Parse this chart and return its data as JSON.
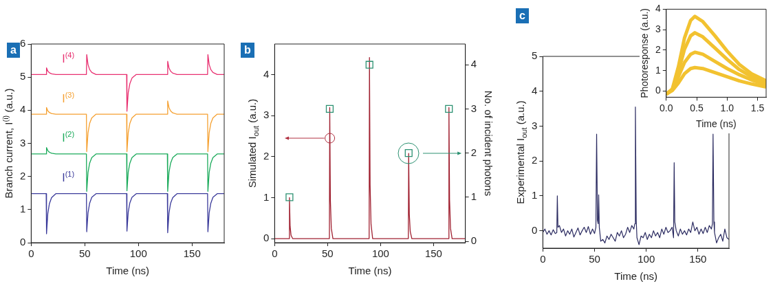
{
  "chart_data": [
    {
      "type": "line",
      "title": "a",
      "xlabel": "Time (ns)",
      "ylabel": "Branch current, I$^{(i)}$ (a.u.)",
      "x": [
        0,
        14,
        14.3,
        15.5,
        17,
        19,
        23,
        51.5,
        51.8,
        53,
        54.5,
        56.5,
        60.5,
        89,
        89.3,
        90.5,
        92,
        94,
        98,
        127,
        127.3,
        128.5,
        130,
        132,
        136,
        164.5,
        164.8,
        166,
        167.5,
        169.5,
        173.5,
        180
      ],
      "xlim": [
        0,
        180
      ],
      "xticks": [
        0,
        50,
        100,
        150
      ],
      "ylim": [
        0,
        6
      ],
      "yticks": [
        0,
        1,
        2,
        3,
        4,
        5,
        6
      ],
      "series": [
        {
          "name": "I$^{(1)}$",
          "color": "#3a3a9a",
          "values": [
            1.48,
            1.48,
            0.27,
            0.88,
            1.18,
            1.36,
            1.48,
            1.48,
            0.33,
            0.9,
            1.19,
            1.37,
            1.48,
            1.48,
            0.35,
            0.92,
            1.2,
            1.37,
            1.48,
            1.48,
            0.3,
            0.89,
            1.19,
            1.36,
            1.48,
            1.48,
            0.33,
            0.9,
            1.19,
            1.37,
            1.48,
            1.48
          ]
        },
        {
          "name": "I$^{(2)}$",
          "color": "#1aaa5a",
          "values": [
            2.68,
            2.68,
            2.87,
            2.78,
            2.73,
            2.7,
            2.68,
            2.68,
            1.55,
            2.12,
            2.4,
            2.57,
            2.68,
            2.68,
            1.57,
            2.13,
            2.4,
            2.57,
            2.68,
            2.68,
            1.55,
            2.12,
            2.4,
            2.57,
            2.68,
            2.68,
            1.55,
            2.12,
            2.4,
            2.57,
            2.68,
            2.68
          ]
        },
        {
          "name": "I$^{(3)}$",
          "color": "#f5a030",
          "values": [
            3.88,
            3.88,
            4.08,
            3.98,
            3.93,
            3.9,
            3.88,
            3.88,
            2.75,
            3.32,
            3.6,
            3.77,
            3.88,
            3.88,
            2.75,
            3.32,
            3.6,
            3.77,
            3.88,
            3.88,
            4.28,
            4.08,
            3.98,
            3.92,
            3.88,
            3.88,
            2.75,
            3.32,
            3.6,
            3.77,
            3.88,
            3.88
          ]
        },
        {
          "name": "I$^{(4)}$",
          "color": "#e83070",
          "values": [
            5.08,
            5.08,
            5.28,
            5.18,
            5.13,
            5.1,
            5.08,
            5.08,
            5.68,
            5.38,
            5.23,
            5.14,
            5.08,
            5.08,
            3.97,
            4.53,
            4.8,
            4.97,
            5.08,
            5.08,
            5.48,
            5.28,
            5.18,
            5.12,
            5.08,
            5.08,
            5.68,
            5.38,
            5.23,
            5.14,
            5.08,
            5.08
          ]
        }
      ]
    },
    {
      "type": "line",
      "title": "b",
      "xlabel": "Time (ns)",
      "ylabel": "Simulated I$_{out}$ (a.u.)",
      "y2label": "No. of incident photons",
      "xlim": [
        0,
        180
      ],
      "xticks": [
        0,
        50,
        100,
        150
      ],
      "ylim": [
        -0.1,
        4.75
      ],
      "yticks": [
        0,
        1,
        2,
        3,
        4
      ],
      "y2lim": [
        -0.03,
        4.47
      ],
      "y2ticks": [
        0,
        1,
        2,
        3,
        4
      ],
      "series": [
        {
          "color": "#a02030",
          "x": [
            0,
            13.7,
            14,
            14.6,
            15.5,
            17,
            51.7,
            52,
            52.6,
            53.5,
            55,
            89.2,
            89.5,
            90.1,
            91,
            92.5,
            126.2,
            126.5,
            127.1,
            128,
            129.5,
            164.2,
            164.5,
            165.1,
            166,
            167.5,
            180
          ],
          "values": [
            0,
            0,
            1,
            0.3,
            0.08,
            0,
            0,
            3.2,
            0.95,
            0.25,
            0,
            0,
            4.42,
            1.3,
            0.35,
            0,
            0,
            2.08,
            0.6,
            0.17,
            0,
            0,
            3.2,
            0.95,
            0.25,
            0,
            0
          ]
        },
        {
          "type": "scatter",
          "axis": "y2",
          "marker": "square",
          "color": "#2a9070",
          "x": [
            14,
            52,
            89.5,
            126.5,
            164.5
          ],
          "values": [
            1,
            3,
            4,
            2,
            3
          ]
        }
      ]
    },
    {
      "type": "line",
      "title": "c",
      "xlabel": "Time (ns)",
      "ylabel": "Experimental I$_{out}$ (a.u.)",
      "xlim": [
        0,
        180
      ],
      "xticks": [
        0,
        50,
        100,
        150
      ],
      "ylim": [
        -0.5,
        5
      ],
      "yticks": [
        0,
        1,
        2,
        3,
        4,
        5
      ],
      "series": [
        {
          "color": "#2a2a60",
          "x": [
            0,
            2,
            4,
            6,
            8,
            10,
            12,
            13.5,
            14,
            14.6,
            16,
            18,
            20,
            22,
            24,
            26,
            28,
            30,
            32,
            34,
            36,
            38,
            40,
            42,
            44,
            46,
            48,
            50,
            51.3,
            52,
            52.8,
            53.5,
            54,
            54.6,
            56,
            58,
            60,
            62,
            64,
            66,
            68,
            70,
            72,
            74,
            76,
            78,
            80,
            82,
            84,
            86,
            88,
            88.9,
            89.5,
            90.3,
            91,
            93,
            95,
            97,
            99,
            101,
            103,
            105,
            107,
            109,
            111,
            113,
            115,
            117,
            119,
            121,
            123,
            125,
            126.4,
            127,
            127.6,
            129,
            131,
            133,
            135,
            137,
            139,
            141,
            143,
            145,
            147,
            149,
            151,
            153,
            155,
            157,
            159,
            161,
            163,
            164,
            164.6,
            165.4,
            166,
            168,
            170,
            172,
            174,
            176,
            178,
            180
          ],
          "values": [
            -0.05,
            0.05,
            -0.1,
            0,
            -0.12,
            0.03,
            -0.08,
            -0.05,
            1,
            0.1,
            0.15,
            -0.05,
            0.05,
            -0.15,
            0,
            -0.1,
            0.05,
            -0.18,
            -0.05,
            0.08,
            -0.12,
            0,
            0.1,
            -0.05,
            0.12,
            -0.1,
            0.05,
            -0.08,
            0.1,
            2.77,
            0.3,
            0.2,
            1.03,
            0.1,
            -0.3,
            -0.25,
            -0.35,
            -0.15,
            -0.25,
            -0.1,
            -0.2,
            -0.3,
            -0.05,
            -0.15,
            0,
            -0.2,
            -0.1,
            0.1,
            -0.05,
            0.15,
            0.05,
            0.2,
            3.55,
            0.3,
            -0.2,
            -0.4,
            -0.15,
            -0.2,
            -0.05,
            -0.25,
            -0.1,
            -0.2,
            0,
            -0.15,
            -0.05,
            -0.2,
            0.05,
            -0.1,
            0.1,
            -0.05,
            0,
            0.1,
            -0.2,
            1.95,
            0.25,
            0,
            -0.15,
            0.05,
            -0.1,
            0,
            -0.12,
            0.05,
            -0.05,
            0.25,
            0,
            0.1,
            -0.1,
            0.05,
            -0.08,
            0.1,
            -0.05,
            0.15,
            0.05,
            0.2,
            2.77,
            0.25,
            -0.05,
            -0.35,
            -0.2,
            -0.1,
            -0.3,
            0.05,
            -0.2,
            -0.25
          ]
        }
      ]
    },
    {
      "type": "line",
      "xlabel": "Time (ns)",
      "ylabel": "Photoresponse (a.u.)",
      "x": [
        0,
        0.1,
        0.2,
        0.3,
        0.4,
        0.47,
        0.6,
        0.8,
        1,
        1.2,
        1.4,
        1.64
      ],
      "xlim": [
        0,
        1.64
      ],
      "xticks": [
        {
          "value": 0,
          "label": "0.0"
        },
        {
          "value": 0.5,
          "label": "0.5"
        },
        {
          "value": 1,
          "label": "1.0"
        },
        {
          "value": 1.5,
          "label": "1.5"
        }
      ],
      "ylim": [
        -0.3,
        4
      ],
      "yticks": [
        0,
        1,
        2,
        3,
        4
      ],
      "series": [
        {
          "color": "#f2c230",
          "values": [
            -0.15,
            0.1,
            1.2,
            2.6,
            3.45,
            3.65,
            3.4,
            2.7,
            1.95,
            1.3,
            0.85,
            0.5
          ]
        },
        {
          "color": "#f2c230",
          "values": [
            -0.15,
            0.08,
            0.95,
            2.05,
            2.7,
            2.85,
            2.65,
            2.1,
            1.55,
            1.05,
            0.7,
            0.4
          ]
        },
        {
          "color": "#f2c230",
          "values": [
            -0.15,
            0.05,
            0.7,
            1.4,
            1.8,
            1.9,
            1.8,
            1.45,
            1.1,
            0.8,
            0.55,
            0.3
          ]
        },
        {
          "color": "#f2c230",
          "values": [
            -0.15,
            0.03,
            0.4,
            0.85,
            1.1,
            1.15,
            1.1,
            0.9,
            0.7,
            0.5,
            0.35,
            0.2
          ]
        }
      ]
    }
  ]
}
